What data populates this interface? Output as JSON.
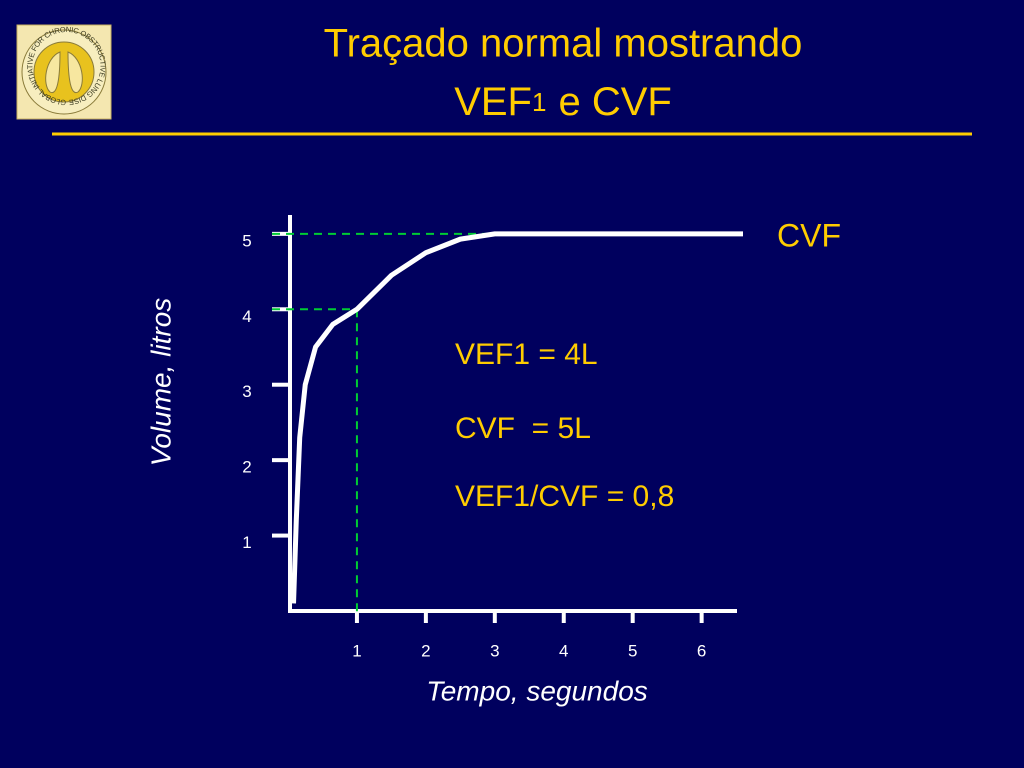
{
  "logo_text": "GLOBAL INITIATIVE FOR CHRONIC OBSTRUCTIVE LUNG DISEASE",
  "chart_data": {
    "type": "line",
    "title": {
      "line1": "Traçado normal mostrando",
      "line2": "VEF",
      "line2_sub": "1",
      "line2_rest": "e CVF"
    },
    "x_label": "Tempo, segundos",
    "y_label": "Volume, litros",
    "x": [
      0.08,
      0.12,
      0.17,
      0.25,
      0.4,
      0.65,
      1,
      1.5,
      2,
      2.5,
      3,
      6.6
    ],
    "series": [
      {
        "name": "CVF",
        "color": "#ffffff",
        "values": [
          0.1,
          1.2,
          2.3,
          3.0,
          3.5,
          3.8,
          4.0,
          4.45,
          4.75,
          4.93,
          5,
          5
        ]
      }
    ],
    "xlim": [
      0,
      6.6
    ],
    "ylim": [
      0,
      5.25
    ],
    "xticks": [
      1,
      2,
      3,
      4,
      5,
      6
    ],
    "yticks": [
      1,
      2,
      3,
      4,
      5
    ],
    "guide_color": "#00cc33",
    "annotations": [
      "VEF1 = 4L",
      "CVF  = 5L",
      "VEF1/CVF = 0,8"
    ]
  }
}
